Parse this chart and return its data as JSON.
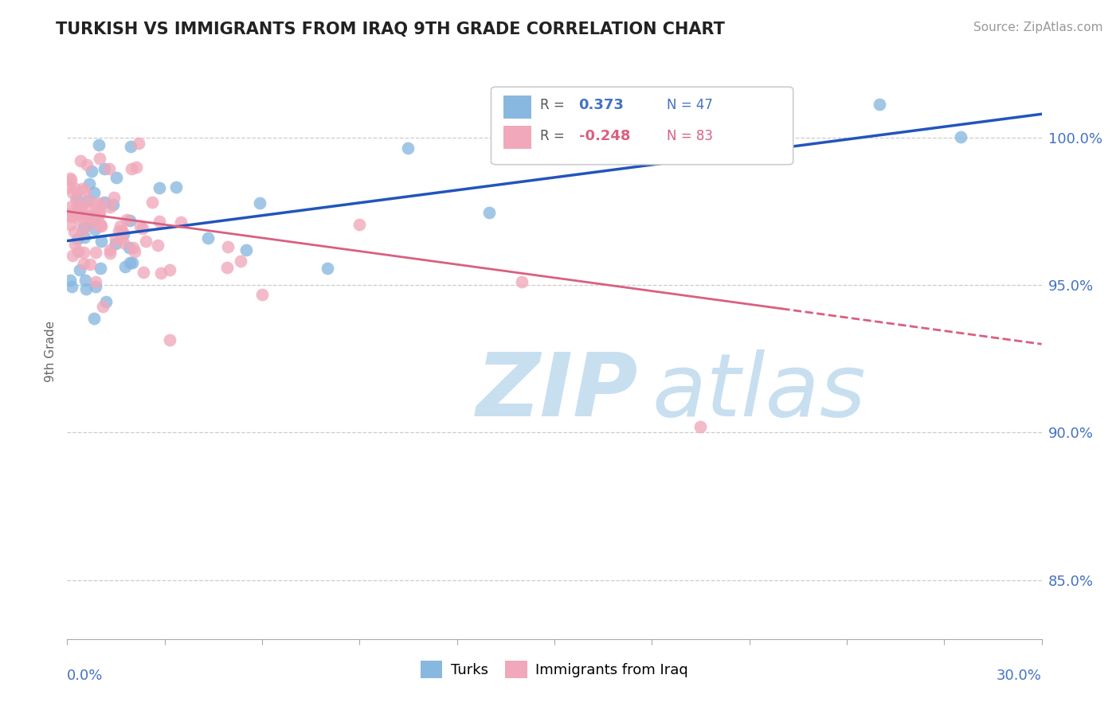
{
  "title": "TURKISH VS IMMIGRANTS FROM IRAQ 9TH GRADE CORRELATION CHART",
  "source": "Source: ZipAtlas.com",
  "ylabel": "9th Grade",
  "xlim": [
    0.0,
    30.0
  ],
  "ylim": [
    83.0,
    102.5
  ],
  "yticks": [
    85.0,
    90.0,
    95.0,
    100.0
  ],
  "ytick_labels": [
    "85.0%",
    "90.0%",
    "95.0%",
    "100.0%"
  ],
  "legend_r_blue": "0.373",
  "legend_n_blue": "47",
  "legend_r_pink": "-0.248",
  "legend_n_pink": "83",
  "blue_color": "#88b8e0",
  "pink_color": "#f0a8ba",
  "trend_blue_color": "#2255bb",
  "trend_pink_color": "#d96080",
  "blue_line_x0": 0.0,
  "blue_line_y0": 96.5,
  "blue_line_x1": 30.0,
  "blue_line_y1": 100.8,
  "pink_line_x0": 0.0,
  "pink_line_y0": 97.5,
  "pink_line_x1": 30.0,
  "pink_line_y1": 93.0,
  "pink_solid_end_x": 22.0,
  "grid_color": "#cccccc",
  "watermark_zip_color": "#c8dff0",
  "watermark_atlas_color": "#c8dff0"
}
